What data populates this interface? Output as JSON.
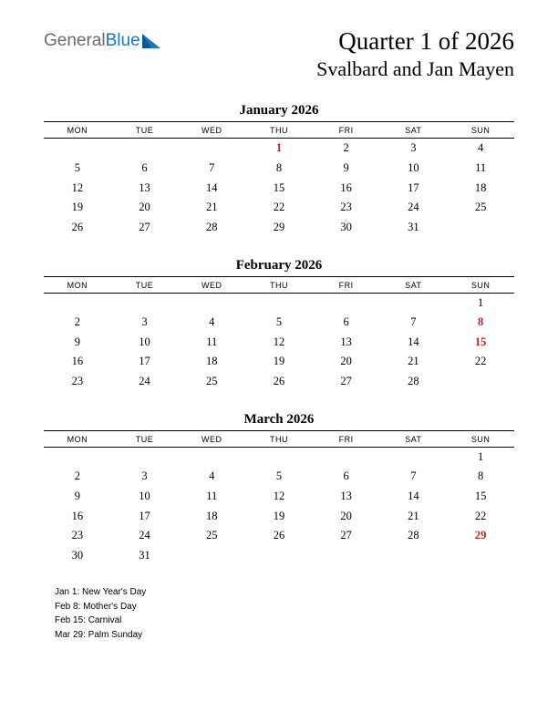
{
  "logo": {
    "word1": "General",
    "word2": "Blue"
  },
  "title": {
    "line1": "Quarter 1 of 2026",
    "line2": "Svalbard and Jan Mayen"
  },
  "weekdays": [
    "MON",
    "TUE",
    "WED",
    "THU",
    "FRI",
    "SAT",
    "SUN"
  ],
  "colors": {
    "holiday": "#c41e1e",
    "text": "#000000",
    "logo_gray": "#6a6a6a",
    "logo_blue": "#1976c1",
    "background": "#ffffff"
  },
  "months": [
    {
      "title": "January 2026",
      "weeks": [
        [
          null,
          null,
          null,
          {
            "d": 1,
            "h": true
          },
          {
            "d": 2
          },
          {
            "d": 3
          },
          {
            "d": 4
          }
        ],
        [
          {
            "d": 5
          },
          {
            "d": 6
          },
          {
            "d": 7
          },
          {
            "d": 8
          },
          {
            "d": 9
          },
          {
            "d": 10
          },
          {
            "d": 11
          }
        ],
        [
          {
            "d": 12
          },
          {
            "d": 13
          },
          {
            "d": 14
          },
          {
            "d": 15
          },
          {
            "d": 16
          },
          {
            "d": 17
          },
          {
            "d": 18
          }
        ],
        [
          {
            "d": 19
          },
          {
            "d": 20
          },
          {
            "d": 21
          },
          {
            "d": 22
          },
          {
            "d": 23
          },
          {
            "d": 24
          },
          {
            "d": 25
          }
        ],
        [
          {
            "d": 26
          },
          {
            "d": 27
          },
          {
            "d": 28
          },
          {
            "d": 29
          },
          {
            "d": 30
          },
          {
            "d": 31
          },
          null
        ]
      ]
    },
    {
      "title": "February 2026",
      "weeks": [
        [
          null,
          null,
          null,
          null,
          null,
          null,
          {
            "d": 1
          }
        ],
        [
          {
            "d": 2
          },
          {
            "d": 3
          },
          {
            "d": 4
          },
          {
            "d": 5
          },
          {
            "d": 6
          },
          {
            "d": 7
          },
          {
            "d": 8,
            "h": true
          }
        ],
        [
          {
            "d": 9
          },
          {
            "d": 10
          },
          {
            "d": 11
          },
          {
            "d": 12
          },
          {
            "d": 13
          },
          {
            "d": 14
          },
          {
            "d": 15,
            "h": true
          }
        ],
        [
          {
            "d": 16
          },
          {
            "d": 17
          },
          {
            "d": 18
          },
          {
            "d": 19
          },
          {
            "d": 20
          },
          {
            "d": 21
          },
          {
            "d": 22
          }
        ],
        [
          {
            "d": 23
          },
          {
            "d": 24
          },
          {
            "d": 25
          },
          {
            "d": 26
          },
          {
            "d": 27
          },
          {
            "d": 28
          },
          null
        ]
      ]
    },
    {
      "title": "March 2026",
      "weeks": [
        [
          null,
          null,
          null,
          null,
          null,
          null,
          {
            "d": 1
          }
        ],
        [
          {
            "d": 2
          },
          {
            "d": 3
          },
          {
            "d": 4
          },
          {
            "d": 5
          },
          {
            "d": 6
          },
          {
            "d": 7
          },
          {
            "d": 8
          }
        ],
        [
          {
            "d": 9
          },
          {
            "d": 10
          },
          {
            "d": 11
          },
          {
            "d": 12
          },
          {
            "d": 13
          },
          {
            "d": 14
          },
          {
            "d": 15
          }
        ],
        [
          {
            "d": 16
          },
          {
            "d": 17
          },
          {
            "d": 18
          },
          {
            "d": 19
          },
          {
            "d": 20
          },
          {
            "d": 21
          },
          {
            "d": 22
          }
        ],
        [
          {
            "d": 23
          },
          {
            "d": 24
          },
          {
            "d": 25
          },
          {
            "d": 26
          },
          {
            "d": 27
          },
          {
            "d": 28
          },
          {
            "d": 29,
            "h": true
          }
        ],
        [
          {
            "d": 30
          },
          {
            "d": 31
          },
          null,
          null,
          null,
          null,
          null
        ]
      ]
    }
  ],
  "holidays": [
    "Jan 1: New Year's Day",
    "Feb 8: Mother's Day",
    "Feb 15: Carnival",
    "Mar 29: Palm Sunday"
  ]
}
